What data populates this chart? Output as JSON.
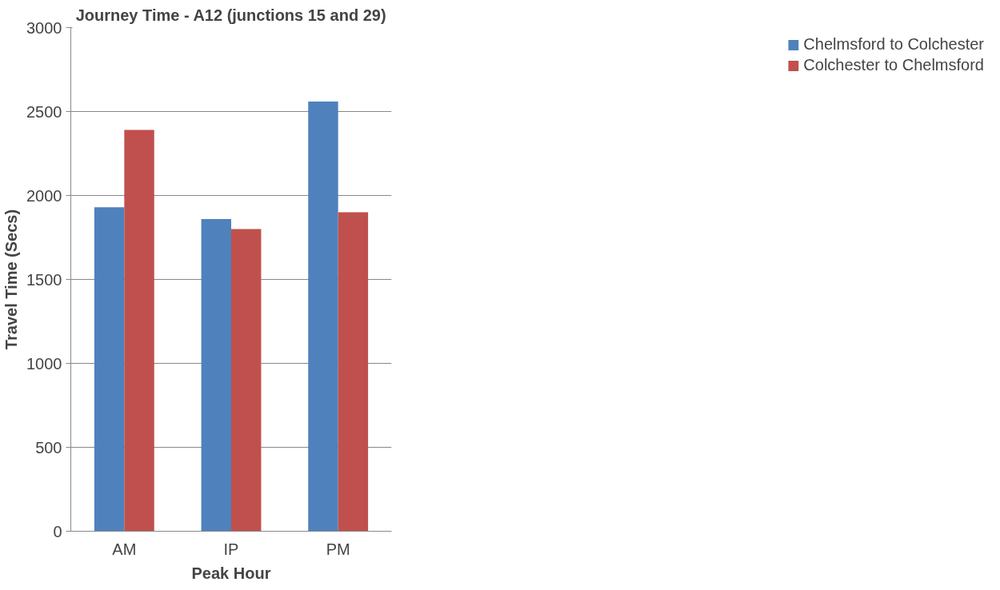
{
  "chart_data": {
    "type": "bar",
    "title": "Journey Time - A12 (junctions 15 and 29)",
    "xlabel": "Peak Hour",
    "ylabel": "Travel Time (Secs)",
    "categories": [
      "AM",
      "IP",
      "PM"
    ],
    "series": [
      {
        "name": "Chelmsford to Colchester",
        "color": "#4f81bd",
        "values": [
          1930,
          1860,
          2560
        ]
      },
      {
        "name": "Colchester to Chelmsford",
        "color": "#c0504d",
        "values": [
          2390,
          1800,
          1900
        ]
      }
    ],
    "ylim": [
      0,
      3000
    ],
    "yticks": [
      0,
      500,
      1000,
      1500,
      2000,
      2500,
      3000
    ],
    "grid": "y",
    "legend": "right"
  }
}
